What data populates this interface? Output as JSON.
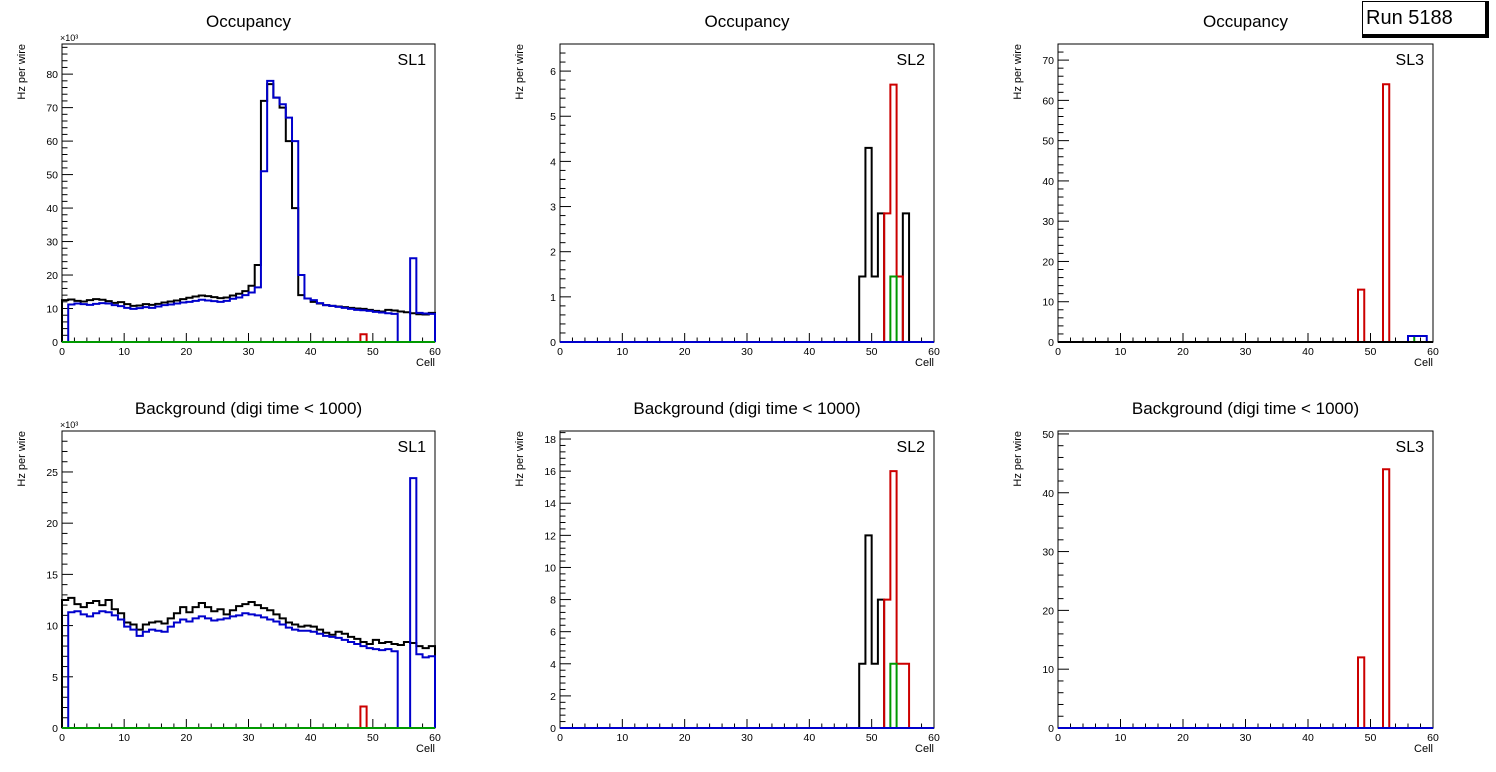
{
  "run_label": "Run 5188",
  "colors": {
    "black": "#000000",
    "red": "#cc0000",
    "green": "#009900",
    "blue": "#0000cc"
  },
  "chart_data": [
    {
      "type": "step-histogram",
      "title": "Occupancy",
      "label": "SL1",
      "xlabel": "Cell",
      "ylabel": "Hz per wire",
      "multiplier": "×10³",
      "xlim": [
        0,
        60
      ],
      "ylim": [
        0,
        89
      ],
      "xticks": [
        0,
        10,
        20,
        30,
        40,
        50,
        60
      ],
      "yticks": [
        0,
        10,
        20,
        30,
        40,
        50,
        60,
        70,
        80
      ],
      "series": [
        {
          "name": "black",
          "color": "#000000",
          "values": [
            12.5,
            12.7,
            12.3,
            12.1,
            12.5,
            12.8,
            12.6,
            12.2,
            11.7,
            11.9,
            11.3,
            10.8,
            10.9,
            11.3,
            11.1,
            11.4,
            11.8,
            12.1,
            12.4,
            12.8,
            13.2,
            13.6,
            13.9,
            13.7,
            13.4,
            13.1,
            13.3,
            13.9,
            14.4,
            15.2,
            16.8,
            23,
            72,
            77,
            73,
            70,
            60,
            40,
            14,
            13,
            12,
            11.5,
            11,
            10.8,
            10.6,
            10.4,
            10.2,
            10,
            9.9,
            9.6,
            9.3,
            9.1,
            9.6,
            9.4,
            9.1,
            8.9,
            8.6,
            8.3,
            8.2,
            8.7
          ],
          "pairs": []
        },
        {
          "name": "blue",
          "color": "#0000cc",
          "values": [
            0,
            11.2,
            11.5,
            11.3,
            11.1,
            11.4,
            11.6,
            11.5,
            11,
            10.7,
            10.2,
            9.9,
            10.1,
            10.4,
            10.2,
            10.6,
            11,
            11.2,
            11.5,
            11.8,
            12,
            12.3,
            12.6,
            12.4,
            12.2,
            12,
            12.3,
            12.9,
            13.3,
            14,
            14.8,
            16.3,
            51,
            78,
            73,
            71,
            67,
            60,
            20,
            13,
            12.5,
            11.6,
            11,
            10.8,
            10.5,
            10.2,
            9.9,
            9.6,
            9.5,
            9.3,
            9,
            8.8,
            8.6,
            8.4,
            0,
            0,
            25,
            8.7,
            8.5,
            8.4
          ],
          "pairs": []
        },
        {
          "name": "red",
          "color": "#cc0000",
          "values": [],
          "pairs": [
            [
              48,
              2.3
            ]
          ]
        },
        {
          "name": "green",
          "color": "#009900",
          "values": [],
          "pairs": []
        }
      ]
    },
    {
      "type": "step-histogram",
      "title": "Occupancy",
      "label": "SL2",
      "xlabel": "Cell",
      "ylabel": "Hz per wire",
      "multiplier": "",
      "xlim": [
        0,
        60
      ],
      "ylim": [
        0,
        6.6
      ],
      "xticks": [
        0,
        10,
        20,
        30,
        40,
        50,
        60
      ],
      "yticks": [
        0,
        1,
        2,
        3,
        4,
        5,
        6
      ],
      "series": [
        {
          "name": "black",
          "color": "#000000",
          "values": [],
          "pairs": [
            [
              48,
              1.45
            ],
            [
              49,
              4.3
            ],
            [
              50,
              1.45
            ],
            [
              51,
              2.85
            ],
            [
              55,
              2.85
            ]
          ]
        },
        {
          "name": "red",
          "color": "#cc0000",
          "values": [],
          "pairs": [
            [
              52,
              2.85
            ],
            [
              53,
              5.7
            ],
            [
              54,
              1.45
            ]
          ]
        },
        {
          "name": "green",
          "color": "#009900",
          "values": [],
          "pairs": [
            [
              53,
              1.45
            ]
          ]
        },
        {
          "name": "blue",
          "color": "#0000cc",
          "values": [],
          "pairs": []
        }
      ]
    },
    {
      "type": "step-histogram",
      "title": "Occupancy",
      "label": "SL3",
      "xlabel": "Cell",
      "ylabel": "Hz per wire",
      "multiplier": "",
      "xlim": [
        0,
        60
      ],
      "ylim": [
        0,
        74
      ],
      "xticks": [
        0,
        10,
        20,
        30,
        40,
        50,
        60
      ],
      "yticks": [
        0,
        10,
        20,
        30,
        40,
        50,
        60,
        70
      ],
      "series": [
        {
          "name": "red",
          "color": "#cc0000",
          "values": [],
          "pairs": [
            [
              48,
              13
            ],
            [
              52,
              64
            ]
          ]
        },
        {
          "name": "green",
          "color": "#009900",
          "values": [],
          "pairs": [
            [
              56,
              1.5
            ]
          ]
        },
        {
          "name": "blue",
          "color": "#0000cc",
          "values": [],
          "pairs": [
            [
              56,
              1.5
            ],
            [
              57,
              1.5
            ],
            [
              58,
              1.5
            ]
          ]
        },
        {
          "name": "black",
          "color": "#000000",
          "values": [],
          "pairs": []
        }
      ]
    },
    {
      "type": "step-histogram",
      "title": "Background (digi time < 1000)",
      "label": "SL1",
      "xlabel": "Cell",
      "ylabel": "Hz per wire",
      "multiplier": "×10³",
      "xlim": [
        0,
        60
      ],
      "ylim": [
        0,
        29
      ],
      "xticks": [
        0,
        10,
        20,
        30,
        40,
        50,
        60
      ],
      "yticks": [
        0,
        5,
        10,
        15,
        20,
        25
      ],
      "series": [
        {
          "name": "black",
          "color": "#000000",
          "values": [
            12.5,
            12.7,
            12.1,
            11.8,
            12.2,
            12.4,
            12,
            12.5,
            11.6,
            11.2,
            10.3,
            10.1,
            9.6,
            10.1,
            10.3,
            10.4,
            10.2,
            10.7,
            11.2,
            11.8,
            11.3,
            11.8,
            12.2,
            11.8,
            11.4,
            11.6,
            11.1,
            11.5,
            11.9,
            12.1,
            12.3,
            12,
            11.7,
            11.5,
            11.1,
            10.7,
            10.3,
            10.1,
            9.9,
            10,
            9.9,
            9.6,
            9.3,
            9.1,
            9.4,
            9.2,
            8.9,
            8.7,
            8.4,
            8.2,
            8.6,
            8.3,
            8.4,
            8.2,
            8.1,
            8.4,
            8.3,
            8,
            7.8,
            8
          ],
          "pairs": []
        },
        {
          "name": "blue",
          "color": "#0000cc",
          "values": [
            0,
            11.3,
            11.4,
            11.1,
            10.9,
            11.2,
            11.4,
            11.3,
            11,
            10.6,
            9.9,
            9.6,
            9,
            9.4,
            9.6,
            9.5,
            9.4,
            9.9,
            10.3,
            10.6,
            10.4,
            10.7,
            10.9,
            10.7,
            10.5,
            10.6,
            10.7,
            10.9,
            11,
            11.2,
            11.1,
            11,
            10.8,
            10.6,
            10.4,
            10.1,
            9.8,
            9.6,
            9.5,
            9.5,
            9.4,
            9.2,
            9,
            8.9,
            8.8,
            8.6,
            8.4,
            8.2,
            8,
            7.8,
            7.7,
            7.6,
            7.7,
            7.5,
            0,
            0,
            24.4,
            7.2,
            6.9,
            7
          ],
          "pairs": []
        },
        {
          "name": "red",
          "color": "#cc0000",
          "values": [],
          "pairs": [
            [
              48,
              2.1
            ]
          ]
        },
        {
          "name": "green",
          "color": "#009900",
          "values": [],
          "pairs": []
        }
      ]
    },
    {
      "type": "step-histogram",
      "title": "Background (digi time < 1000)",
      "label": "SL2",
      "xlabel": "Cell",
      "ylabel": "Hz per wire",
      "multiplier": "",
      "xlim": [
        0,
        60
      ],
      "ylim": [
        0,
        18.5
      ],
      "xticks": [
        0,
        10,
        20,
        30,
        40,
        50,
        60
      ],
      "yticks": [
        0,
        2,
        4,
        6,
        8,
        10,
        12,
        14,
        16,
        18
      ],
      "series": [
        {
          "name": "black",
          "color": "#000000",
          "values": [],
          "pairs": [
            [
              48,
              4
            ],
            [
              49,
              12
            ],
            [
              50,
              4
            ],
            [
              51,
              8
            ]
          ]
        },
        {
          "name": "red",
          "color": "#cc0000",
          "values": [],
          "pairs": [
            [
              52,
              8
            ],
            [
              53,
              16
            ],
            [
              54,
              4
            ],
            [
              55,
              4
            ]
          ]
        },
        {
          "name": "green",
          "color": "#009900",
          "values": [],
          "pairs": [
            [
              53,
              4
            ]
          ]
        },
        {
          "name": "blue",
          "color": "#0000cc",
          "values": [],
          "pairs": []
        }
      ]
    },
    {
      "type": "step-histogram",
      "title": "Background (digi time < 1000)",
      "label": "SL3",
      "xlabel": "Cell",
      "ylabel": "Hz per wire",
      "multiplier": "",
      "xlim": [
        0,
        60
      ],
      "ylim": [
        0,
        50.5
      ],
      "xticks": [
        0,
        10,
        20,
        30,
        40,
        50,
        60
      ],
      "yticks": [
        0,
        10,
        20,
        30,
        40,
        50
      ],
      "series": [
        {
          "name": "red",
          "color": "#cc0000",
          "values": [],
          "pairs": [
            [
              48,
              12
            ],
            [
              52,
              44
            ]
          ]
        },
        {
          "name": "black",
          "color": "#000000",
          "values": [],
          "pairs": []
        },
        {
          "name": "green",
          "color": "#009900",
          "values": [],
          "pairs": []
        },
        {
          "name": "blue",
          "color": "#0000cc",
          "values": [],
          "pairs": []
        }
      ]
    }
  ]
}
